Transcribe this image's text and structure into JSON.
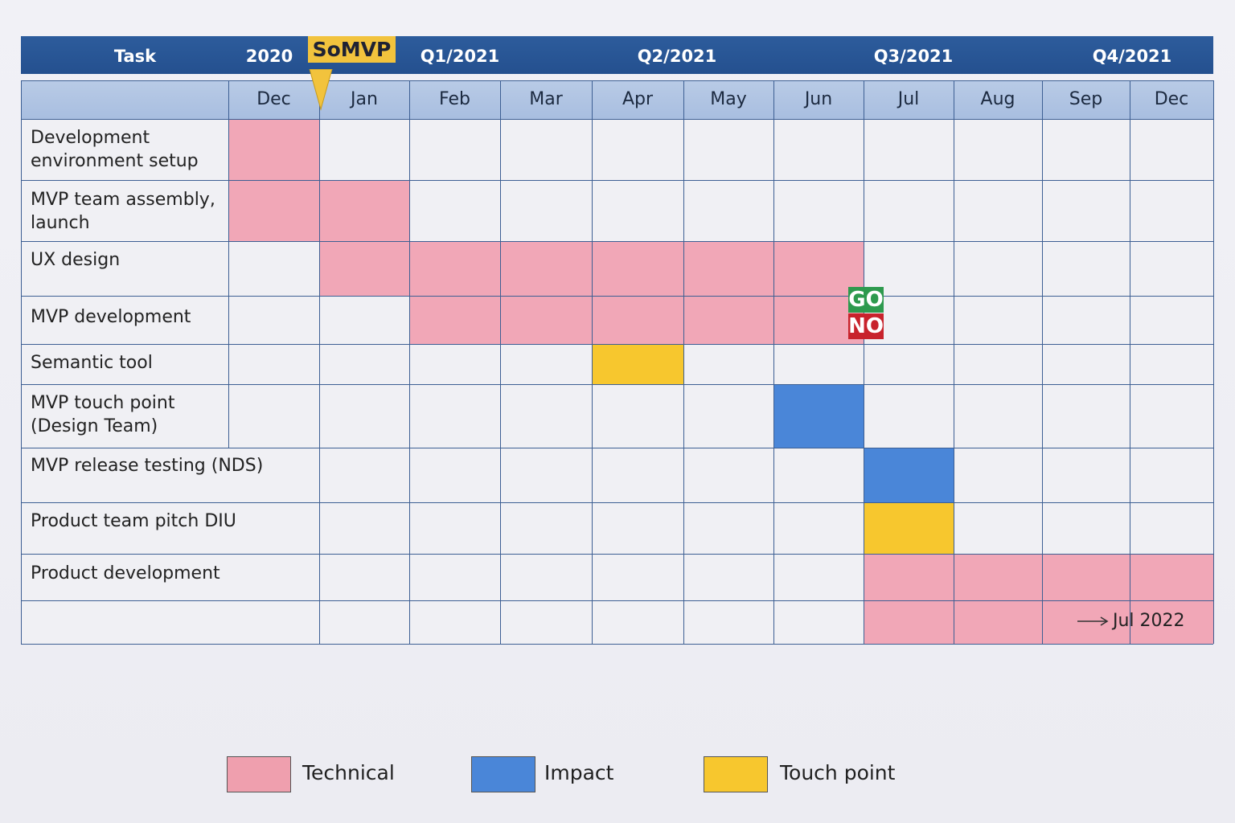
{
  "chart_data": {
    "type": "gantt",
    "header_periods": [
      {
        "label": "Task"
      },
      {
        "label": "2020"
      },
      {
        "label": "Q1/2021"
      },
      {
        "label": "Q2/2021"
      },
      {
        "label": "Q3/2021"
      },
      {
        "label": "Q4/2021"
      }
    ],
    "months": [
      "Dec",
      "Jan",
      "Feb",
      "Mar",
      "Apr",
      "May",
      "Jun",
      "Jul",
      "Aug",
      "Sep",
      "Dec"
    ],
    "tasks": [
      {
        "label": "Development\nenvironment setup",
        "bars": [
          {
            "start": "Dec",
            "end": "Dec",
            "category": "Technical"
          }
        ]
      },
      {
        "label": "MVP team assembly,\nlaunch",
        "bars": [
          {
            "start": "Dec",
            "end": "Jan",
            "category": "Technical"
          }
        ]
      },
      {
        "label": "UX design",
        "bars": [
          {
            "start": "Jan",
            "end": "Jun",
            "category": "Technical"
          }
        ]
      },
      {
        "label": "MVP development",
        "bars": [
          {
            "start": "Feb",
            "end": "Feb",
            "category": "Technical"
          },
          {
            "start": "Mar",
            "end": "Jun",
            "category": "Technical"
          }
        ]
      },
      {
        "label": "Semantic tool",
        "bars": [
          {
            "start": "Apr",
            "end": "Apr",
            "category": "Touch point"
          }
        ]
      },
      {
        "label": "MVP touch point\n(Design Team)",
        "bars": [
          {
            "start": "Jun",
            "end": "Jun",
            "category": "Impact"
          }
        ]
      },
      {
        "label": "MVP release testing (NDS)",
        "bars": [
          {
            "start": "Jul",
            "end": "Jul",
            "category": "Impact"
          }
        ]
      },
      {
        "label": "Product team pitch DIU",
        "bars": [
          {
            "start": "Jul",
            "end": "Jul",
            "category": "Touch point"
          }
        ]
      },
      {
        "label": "Product development",
        "bars": [
          {
            "start": "Jul",
            "end": "Dec",
            "category": "Technical"
          }
        ]
      },
      {
        "label": "",
        "bars": [
          {
            "start": "Jul",
            "end": "Dec",
            "category": "Technical"
          }
        ],
        "continuation": "Jul 2022"
      }
    ],
    "milestone": {
      "label": "SoMVP",
      "at": "between Dec and Jan"
    },
    "decision": {
      "go": "GO",
      "no": "NO",
      "at": "end of Jun"
    },
    "legend": [
      {
        "name": "Technical",
        "color": "#ef9fae"
      },
      {
        "name": "Impact",
        "color": "#4a86d8"
      },
      {
        "name": "Touch point",
        "color": "#f7c72e"
      }
    ],
    "legend_placement": "bottom"
  },
  "colors": {
    "header_band": "#2a5896",
    "month_row": "#b3c6e4",
    "grid_line": "#3d5f93",
    "Technical": "#f1a7b7",
    "Impact": "#4a86d8",
    "Touch point": "#f7c72e",
    "milestone": "#f2c33d",
    "go": "#2e9a4e",
    "no": "#c8232c"
  }
}
